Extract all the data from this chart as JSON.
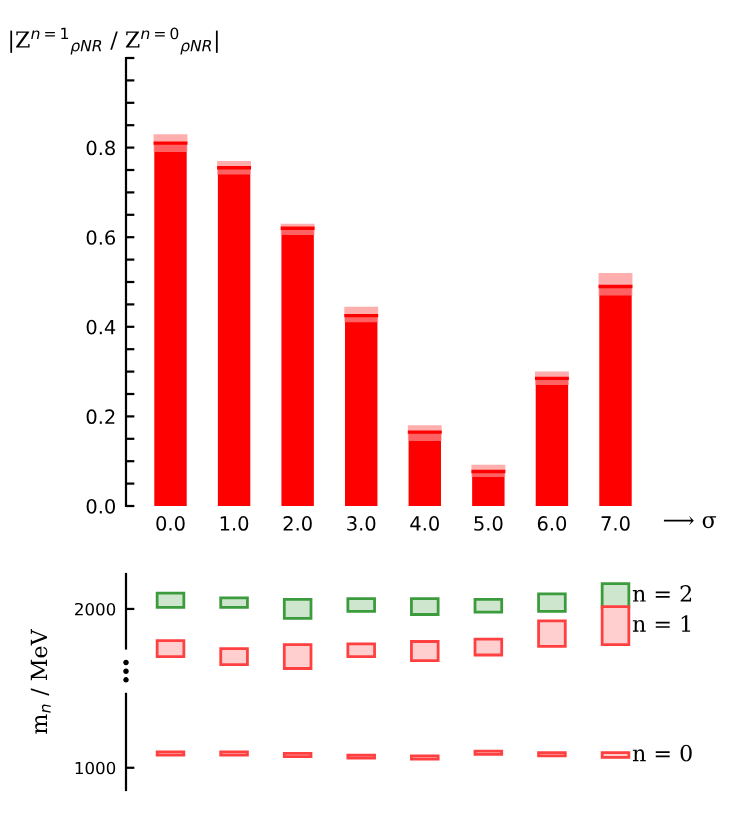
{
  "chart_data": [
    {
      "type": "bar",
      "ylabel": "|Z$^{n=1}$$_{ρNR}$ / Z$^{n=0}$$_{ρNR}$|",
      "xlabel": "⟶ σ",
      "categories": [
        "0.0",
        "1.0",
        "2.0",
        "3.0",
        "4.0",
        "5.0",
        "6.0",
        "7.0"
      ],
      "values": [
        0.81,
        0.755,
        0.62,
        0.425,
        0.165,
        0.077,
        0.285,
        0.49
      ],
      "errors": [
        [
          0.79,
          0.83
        ],
        [
          0.74,
          0.77
        ],
        [
          0.605,
          0.63
        ],
        [
          0.41,
          0.445
        ],
        [
          0.145,
          0.18
        ],
        [
          0.065,
          0.092
        ],
        [
          0.27,
          0.3
        ],
        [
          0.47,
          0.52
        ]
      ],
      "color": "#ff0000",
      "ylim": [
        0,
        1.0
      ],
      "yticks": [
        {
          "value": 0,
          "label": "0.0"
        },
        {
          "value": 0.05,
          "label": null
        },
        {
          "value": 0.1,
          "label": null
        },
        {
          "value": 0.15,
          "label": null
        },
        0.2,
        {
          "value": 0.25,
          "label": null
        },
        {
          "value": 0.3,
          "label": null
        },
        {
          "value": 0.35,
          "label": null
        },
        0.4,
        {
          "value": 0.45,
          "label": null
        },
        {
          "value": 0.5,
          "label": null
        },
        {
          "value": 0.55,
          "label": null
        },
        0.6,
        {
          "value": 0.65,
          "label": null
        },
        {
          "value": 0.7,
          "label": null
        },
        {
          "value": 0.75,
          "label": null
        },
        0.8,
        {
          "value": 0.85,
          "label": null
        },
        {
          "value": 0.9,
          "label": null
        },
        {
          "value": 0.95,
          "label": null
        },
        {
          "value": 1.0,
          "label": null
        }
      ],
      "grid": false,
      "legend": false
    },
    {
      "type": "bar",
      "ylabel": "m$_{n}$ / MeV",
      "categories": [
        null,
        null,
        null,
        null,
        null,
        null,
        null,
        null
      ],
      "series": [
        {
          "name": "n = 2",
          "color": "#3c9b3c",
          "base": [
            2010,
            2010,
            1940,
            1985,
            1965,
            1980,
            1985,
            2010
          ],
          "values": [
            90,
            60,
            120,
            80,
            100,
            80,
            110,
            150
          ]
        },
        {
          "name": "n = 1",
          "color": "#ff4040",
          "base": [
            1700,
            1650,
            1625,
            1700,
            1675,
            1710,
            1765,
            1775
          ],
          "values": [
            100,
            100,
            150,
            80,
            120,
            100,
            160,
            240
          ]
        },
        {
          "name": "n = 0",
          "color": "#ff4040",
          "base": [
            1080,
            1080,
            1070,
            1060,
            1055,
            1085,
            1075,
            1065
          ],
          "values": [
            20,
            20,
            20,
            20,
            20,
            20,
            20,
            30
          ]
        }
      ],
      "ylim": [
        860,
        2220
      ],
      "yticks": [
        1000,
        2000
      ],
      "tick_labels": "y",
      "grid": false,
      "legend": false
    }
  ]
}
